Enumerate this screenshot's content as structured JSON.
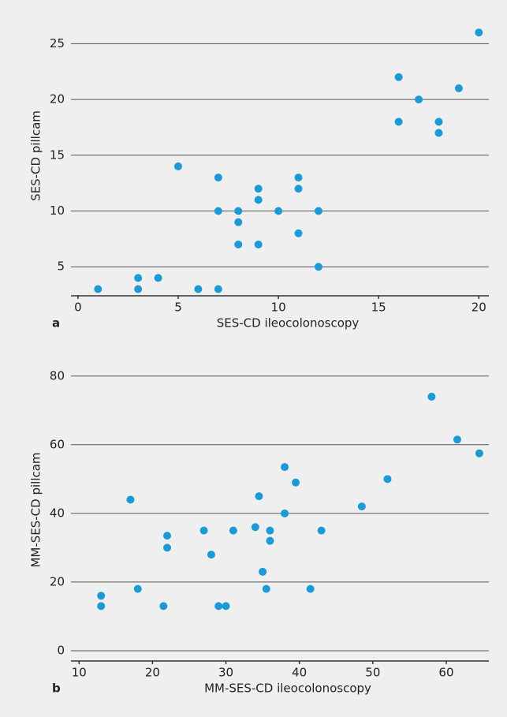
{
  "chart_data": [
    {
      "type": "scatter",
      "panel_label": "a",
      "x_label": "SES-CD ileocolonoscopy",
      "y_label": "SES-CD pillcam",
      "color": "#1a9ad6",
      "x": [
        1,
        3,
        3,
        4,
        5,
        6,
        7,
        7,
        7,
        8,
        8,
        8,
        9,
        9,
        9,
        10,
        11,
        11,
        11,
        12,
        12,
        16,
        16,
        17,
        18,
        18,
        19,
        20
      ],
      "values": [
        3,
        4,
        3,
        4,
        14,
        3,
        13,
        10,
        3,
        10,
        9,
        7,
        12,
        11,
        7,
        10,
        13,
        12,
        8,
        10,
        5,
        22,
        18,
        20,
        18,
        17,
        21,
        26
      ],
      "xlim": [
        -0.35,
        20.5
      ],
      "ylim": [
        2.4,
        27.5
      ],
      "xticks": [
        0,
        5,
        10,
        15,
        20
      ],
      "yticks": [
        5,
        10,
        15,
        20,
        25
      ],
      "grid": true
    },
    {
      "type": "scatter",
      "panel_label": "b",
      "x_label": "MM-SES-CD ileocolonoscopy",
      "y_label": "MM-SES-CD pillcam",
      "color": "#1a9ad6",
      "x": [
        13,
        13,
        17,
        18,
        21.5,
        22,
        22,
        27,
        28,
        29,
        30,
        31,
        34,
        34.5,
        35,
        35.5,
        36,
        36,
        38,
        38,
        39.5,
        41.5,
        43,
        48.5,
        52,
        58,
        61.5,
        64.5
      ],
      "values": [
        16,
        13,
        44,
        18,
        13,
        33.5,
        30,
        35,
        28,
        13,
        13,
        35,
        36,
        45,
        23,
        18,
        35,
        32,
        53.5,
        40,
        49,
        18,
        35,
        42,
        50,
        74,
        61.5,
        57.5
      ],
      "xlim": [
        8.9,
        65.8
      ],
      "ylim": [
        -3,
        85
      ],
      "xticks": [
        10,
        20,
        30,
        40,
        50,
        60
      ],
      "yticks": [
        0,
        20,
        40,
        60,
        80
      ],
      "grid": true
    }
  ]
}
